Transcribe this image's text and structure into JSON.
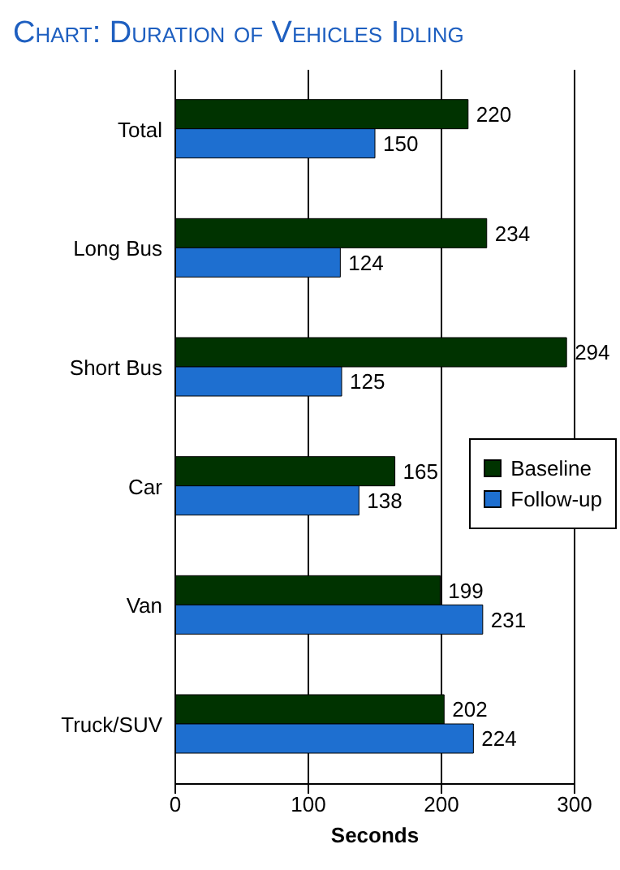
{
  "chart_data": {
    "type": "bar",
    "orientation": "horizontal",
    "title": "Chart: Duration of Vehicles Idling",
    "xlabel": "Seconds",
    "categories": [
      "Total",
      "Long Bus",
      "Short Bus",
      "Car",
      "Van",
      "Truck/SUV"
    ],
    "series": [
      {
        "name": "Baseline",
        "color": "#003300",
        "values": [
          220,
          234,
          294,
          165,
          199,
          202
        ]
      },
      {
        "name": "Follow-up",
        "color": "#1e6fd0",
        "values": [
          150,
          124,
          125,
          138,
          231,
          224
        ]
      }
    ],
    "xlim": [
      0,
      300
    ],
    "xticks": [
      0,
      100,
      200,
      300
    ],
    "grid": "x",
    "legend": "right",
    "data_labels": true
  }
}
